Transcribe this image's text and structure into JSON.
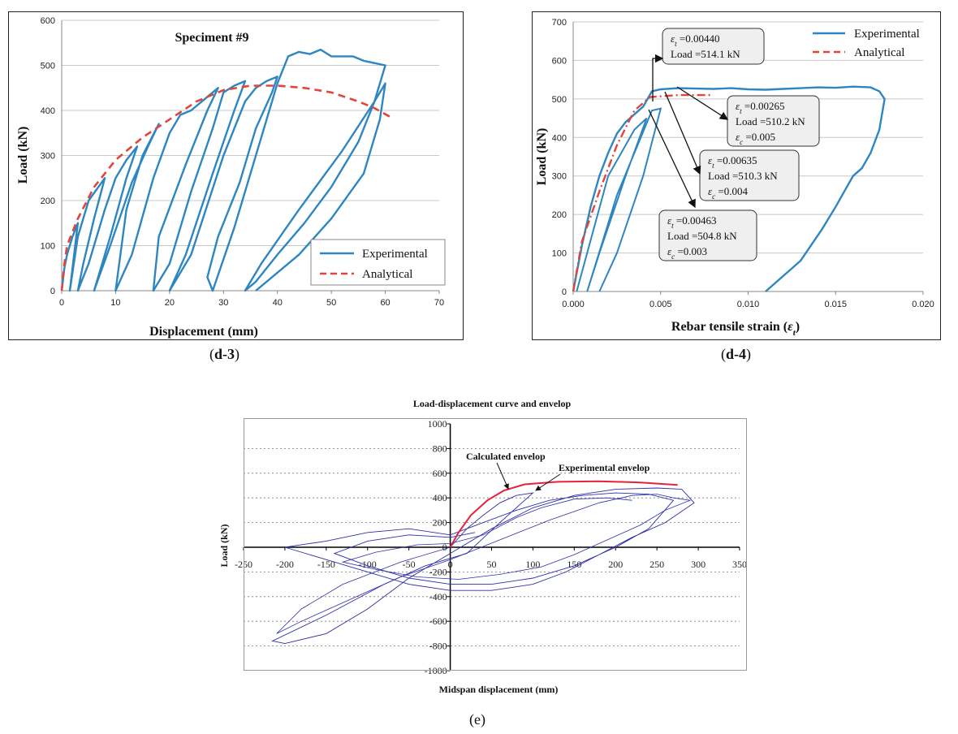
{
  "colors": {
    "experimental": "#2e86c1",
    "analytical": "#e0463e",
    "envelope": "#e8203a",
    "cycles_e": "#2f2fa8",
    "grid": "#c8c8c8"
  },
  "captions": {
    "d3": "(d-3)",
    "d3_parts": [
      "(",
      "d-3",
      ")"
    ],
    "d4": "(d-4)",
    "d4_parts": [
      "(",
      "d-4",
      ")"
    ],
    "e": "(e)"
  },
  "chart_data": [
    {
      "id": "d3",
      "type": "line",
      "title": "Speciment #9",
      "xlabel": "Displacement (mm)",
      "ylabel": "Load (kN)",
      "xlim": [
        0,
        70
      ],
      "ylim": [
        0,
        600
      ],
      "xticks": [
        "0",
        "10",
        "20",
        "30",
        "40",
        "50",
        "60",
        "70"
      ],
      "yticks": [
        "0",
        "100",
        "200",
        "300",
        "400",
        "500",
        "600"
      ],
      "legend": [
        "Experimental",
        "Analytical"
      ],
      "legend_position": "bottom-right",
      "series": [
        {
          "name": "Experimental",
          "style": "solid",
          "points": [
            [
              0,
              0
            ],
            [
              0.5,
              50
            ],
            [
              1,
              80
            ],
            [
              2,
              120
            ],
            [
              3,
              150
            ],
            [
              1.5,
              0
            ],
            [
              3,
              120
            ],
            [
              5,
              200
            ],
            [
              8,
              250
            ],
            [
              6,
              160
            ],
            [
              4,
              60
            ],
            [
              3,
              0
            ],
            [
              5,
              60
            ],
            [
              8,
              180
            ],
            [
              10,
              250
            ],
            [
              12,
              290
            ],
            [
              14,
              320
            ],
            [
              12,
              250
            ],
            [
              9,
              120
            ],
            [
              6,
              0
            ],
            [
              9,
              100
            ],
            [
              13,
              240
            ],
            [
              16,
              320
            ],
            [
              18,
              370
            ],
            [
              15,
              300
            ],
            [
              12,
              180
            ],
            [
              10,
              0
            ],
            [
              13,
              80
            ],
            [
              17,
              250
            ],
            [
              20,
              350
            ],
            [
              22,
              390
            ],
            [
              24,
              400
            ],
            [
              27,
              430
            ],
            [
              29,
              450
            ],
            [
              27,
              400
            ],
            [
              23,
              280
            ],
            [
              18,
              120
            ],
            [
              17,
              0
            ],
            [
              20,
              60
            ],
            [
              24,
              220
            ],
            [
              28,
              360
            ],
            [
              30,
              440
            ],
            [
              32,
              455
            ],
            [
              34,
              465
            ],
            [
              32,
              400
            ],
            [
              28,
              260
            ],
            [
              23,
              80
            ],
            [
              20,
              0
            ],
            [
              24,
              80
            ],
            [
              30,
              300
            ],
            [
              34,
              420
            ],
            [
              36,
              450
            ],
            [
              38,
              465
            ],
            [
              40,
              475
            ],
            [
              39,
              440
            ],
            [
              36,
              360
            ],
            [
              33,
              240
            ],
            [
              29,
              120
            ],
            [
              27,
              30
            ],
            [
              28,
              0
            ],
            [
              32,
              140
            ],
            [
              37,
              340
            ],
            [
              40,
              460
            ],
            [
              42,
              520
            ],
            [
              44,
              530
            ],
            [
              46,
              525
            ],
            [
              48,
              535
            ],
            [
              50,
              520
            ],
            [
              54,
              520
            ],
            [
              56,
              510
            ],
            [
              58,
              505
            ],
            [
              60,
              500
            ],
            [
              58,
              420
            ],
            [
              55,
              330
            ],
            [
              50,
              230
            ],
            [
              45,
              150
            ],
            [
              40,
              80
            ],
            [
              36,
              20
            ],
            [
              34,
              0
            ],
            [
              37,
              60
            ],
            [
              44,
              180
            ],
            [
              52,
              310
            ],
            [
              58,
              420
            ],
            [
              60,
              460
            ],
            [
              59,
              380
            ],
            [
              56,
              260
            ],
            [
              50,
              160
            ],
            [
              44,
              80
            ],
            [
              38,
              20
            ],
            [
              36,
              0
            ]
          ]
        },
        {
          "name": "Analytical",
          "style": "dashed",
          "points": [
            [
              0,
              0
            ],
            [
              0.5,
              60
            ],
            [
              1,
              100
            ],
            [
              3,
              160
            ],
            [
              6,
              230
            ],
            [
              10,
              290
            ],
            [
              15,
              340
            ],
            [
              20,
              380
            ],
            [
              25,
              420
            ],
            [
              30,
              445
            ],
            [
              35,
              455
            ],
            [
              40,
              455
            ],
            [
              45,
              450
            ],
            [
              50,
              440
            ],
            [
              55,
              420
            ],
            [
              58,
              405
            ],
            [
              61,
              385
            ]
          ]
        }
      ]
    },
    {
      "id": "d4",
      "type": "line",
      "title": "",
      "xlabel": "Rebar tensile strain (εt)",
      "xlabel_main": "Rebar tensile strain (",
      "xlabel_sym": "ε",
      "xlabel_sub": "t",
      "xlabel_close": ")",
      "ylabel": "Load (kN)",
      "xlim": [
        0,
        0.02
      ],
      "ylim": [
        0,
        700
      ],
      "xticks": [
        "0.000",
        "0.005",
        "0.010",
        "0.015",
        "0.020"
      ],
      "yticks": [
        "0",
        "100",
        "200",
        "300",
        "400",
        "500",
        "600",
        "700"
      ],
      "legend": [
        "Experimental",
        "Analytical"
      ],
      "legend_position": "top-right",
      "series": [
        {
          "name": "Experimental",
          "style": "solid",
          "points": [
            [
              0,
              0
            ],
            [
              0.0005,
              120
            ],
            [
              0.001,
              220
            ],
            [
              0.0015,
              300
            ],
            [
              0.002,
              360
            ],
            [
              0.0025,
              410
            ],
            [
              0.003,
              440
            ],
            [
              0.0035,
              460
            ],
            [
              0.004,
              480
            ],
            [
              0.0045,
              520
            ],
            [
              0.005,
              525
            ],
            [
              0.006,
              528
            ],
            [
              0.008,
              526
            ],
            [
              0.009,
              528
            ],
            [
              0.01,
              525
            ],
            [
              0.011,
              524
            ],
            [
              0.012,
              526
            ],
            [
              0.013,
              528
            ],
            [
              0.014,
              530
            ],
            [
              0.015,
              529
            ],
            [
              0.016,
              532
            ],
            [
              0.017,
              530
            ],
            [
              0.0175,
              520
            ],
            [
              0.0178,
              500
            ],
            [
              0.0175,
              420
            ],
            [
              0.017,
              360
            ],
            [
              0.0165,
              320
            ],
            [
              0.016,
              300
            ],
            [
              0.0155,
              260
            ],
            [
              0.015,
              220
            ],
            [
              0.0142,
              160
            ],
            [
              0.013,
              80
            ],
            [
              0.012,
              40
            ],
            [
              0.011,
              0
            ]
          ]
        },
        {
          "name": "Analytical",
          "style": "dashdot",
          "points": [
            [
              0,
              0
            ],
            [
              0.0005,
              130
            ],
            [
              0.0015,
              260
            ],
            [
              0.0025,
              380
            ],
            [
              0.0035,
              470
            ],
            [
              0.0044,
              505
            ],
            [
              0.006,
              510
            ],
            [
              0.008,
              510
            ]
          ]
        }
      ],
      "annotations": [
        {
          "eps_t": "0.00440",
          "load": "514.1 kN",
          "eps_c": ""
        },
        {
          "eps_t": "0.00265",
          "load": "510.2 kN",
          "eps_c": "0.005"
        },
        {
          "eps_t": "0.00635",
          "load": "510.3 kN",
          "eps_c": "0.004"
        },
        {
          "eps_t": "0.00463",
          "load": "504.8 kN",
          "eps_c": "0.003"
        }
      ],
      "annotation_labels": {
        "eps_sym": "ε",
        "t": "t",
        "c": "c",
        "eq": " =",
        "load_prefix": "Load ="
      }
    },
    {
      "id": "e",
      "type": "line",
      "title": "Load-displacement curve and envelop",
      "xlabel": "Midspan displacement (mm)",
      "ylabel": "Load (kN)",
      "xlim": [
        -250,
        350
      ],
      "ylim": [
        -1000,
        1000
      ],
      "xticks": [
        "-250",
        "-200",
        "-150",
        "-100",
        "-50",
        "0",
        "50",
        "100",
        "150",
        "200",
        "250",
        "300",
        "350"
      ],
      "yticks": [
        "1000",
        "800",
        "600",
        "400",
        "200",
        "0",
        "-200",
        "-400",
        "-600",
        "-800",
        "-1000"
      ],
      "annotations": [
        "Calculated envelop",
        "Experimental envelop"
      ],
      "series": [
        {
          "name": "Calculated envelop",
          "style": "solid",
          "points": [
            [
              0,
              0
            ],
            [
              10,
              120
            ],
            [
              25,
              260
            ],
            [
              45,
              380
            ],
            [
              65,
              460
            ],
            [
              90,
              510
            ],
            [
              130,
              530
            ],
            [
              180,
              535
            ],
            [
              230,
              525
            ],
            [
              275,
              505
            ]
          ]
        },
        {
          "name": "Cycles",
          "style": "solid",
          "points": [
            [
              0,
              0
            ],
            [
              20,
              150
            ],
            [
              40,
              260
            ],
            [
              60,
              360
            ],
            [
              80,
              420
            ],
            [
              100,
              440
            ],
            [
              60,
              200
            ],
            [
              20,
              -50
            ],
            [
              -30,
              -150
            ],
            [
              -80,
              -300
            ],
            [
              -150,
              -550
            ],
            [
              -215,
              -760
            ],
            [
              -200,
              -780
            ],
            [
              -150,
              -700
            ],
            [
              -100,
              -500
            ],
            [
              -50,
              -250
            ],
            [
              0,
              -50
            ],
            [
              50,
              150
            ],
            [
              100,
              320
            ],
            [
              150,
              420
            ],
            [
              200,
              470
            ],
            [
              250,
              480
            ],
            [
              280,
              470
            ],
            [
              295,
              360
            ],
            [
              260,
              200
            ],
            [
              220,
              80
            ],
            [
              180,
              -60
            ],
            [
              140,
              -200
            ],
            [
              100,
              -300
            ],
            [
              50,
              -350
            ],
            [
              0,
              -350
            ],
            [
              -50,
              -300
            ],
            [
              -100,
              -200
            ],
            [
              -150,
              -100
            ],
            [
              -200,
              0
            ],
            [
              -150,
              50
            ],
            [
              -100,
              120
            ],
            [
              -50,
              150
            ],
            [
              0,
              100
            ],
            [
              40,
              200
            ],
            [
              80,
              300
            ],
            [
              120,
              380
            ],
            [
              160,
              420
            ],
            [
              200,
              440
            ],
            [
              240,
              430
            ],
            [
              270,
              380
            ],
            [
              240,
              150
            ],
            [
              200,
              0
            ],
            [
              150,
              -150
            ],
            [
              100,
              -250
            ],
            [
              50,
              -300
            ],
            [
              0,
              -300
            ],
            [
              -50,
              -250
            ],
            [
              -100,
              -150
            ],
            [
              -140,
              -50
            ],
            [
              -100,
              50
            ],
            [
              -50,
              100
            ],
            [
              0,
              80
            ],
            [
              30,
              120
            ]
          ]
        }
      ]
    }
  ]
}
